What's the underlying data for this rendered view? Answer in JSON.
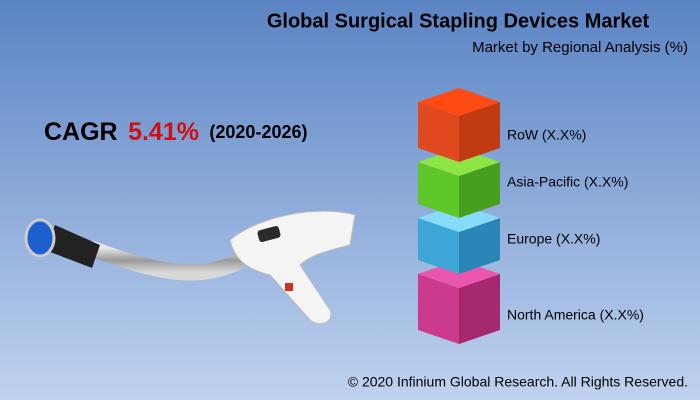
{
  "header": {
    "title": "Global Surgical Stapling Devices Market",
    "subtitle": "Market by Regional Analysis (%)"
  },
  "cagr": {
    "label": "CAGR",
    "value": "5.41%",
    "period": "(2020-2026)"
  },
  "segments": [
    {
      "label": "RoW (X.X%)"
    },
    {
      "label": "Asia-Pacific (X.X%)"
    },
    {
      "label": "Europe (X.X%)"
    },
    {
      "label": "North America (X.X%)"
    }
  ],
  "footer": "© 2020 Infinium Global Research. All Rights Reserved."
}
